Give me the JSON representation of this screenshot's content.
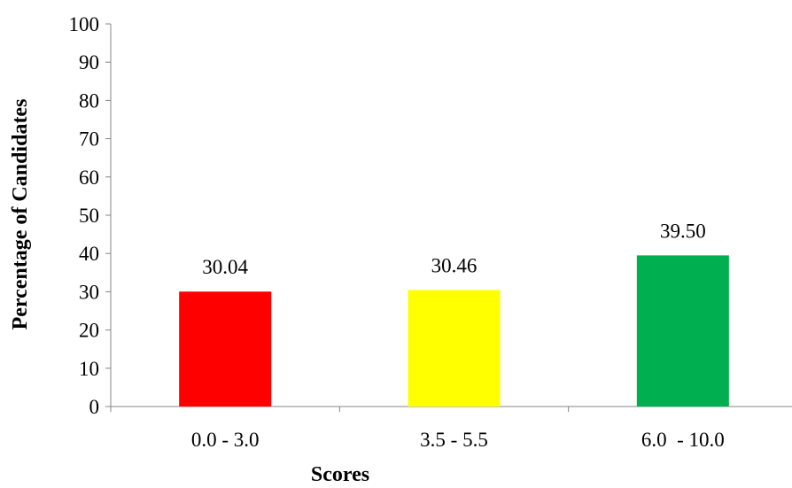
{
  "chart_data": {
    "type": "bar",
    "title": "",
    "xlabel": "Scores",
    "ylabel": "Percentage of Candidates",
    "categories": [
      "0.0 - 3.0",
      "3.5 - 5.5",
      "6.0  - 10.0"
    ],
    "values": [
      30.04,
      30.46,
      39.5
    ],
    "data_labels": [
      "30.04",
      "30.46",
      "39.50"
    ],
    "colors": [
      "#ff0000",
      "#ffff00",
      "#00b050"
    ],
    "ylim": [
      0,
      100
    ],
    "yticks": [
      0,
      10,
      20,
      30,
      40,
      50,
      60,
      70,
      80,
      90,
      100
    ],
    "grid": false,
    "legend": "none"
  }
}
